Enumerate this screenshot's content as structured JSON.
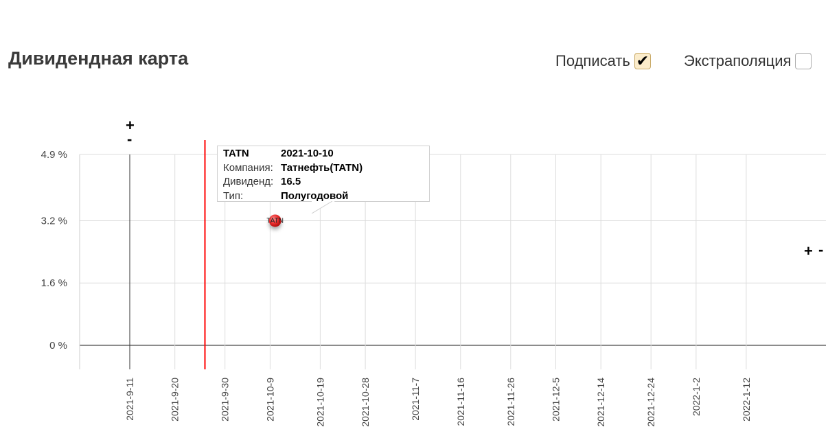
{
  "header": {
    "title": "Дивидендная карта",
    "label_option": "Подписать",
    "label_checked": true,
    "extrapolation_option": "Экстраполяция",
    "extrapolation_checked": false,
    "check_glyph": "✔"
  },
  "zoom": {
    "y_plus": "+",
    "y_minus": "-",
    "x_plus": "+",
    "x_minus": "-"
  },
  "chart_data": {
    "type": "scatter",
    "title": "",
    "xlabel": "",
    "ylabel": "",
    "y_unit": "%",
    "ylim": [
      -0.68,
      4.9
    ],
    "y_ticks": [
      0,
      1.6,
      3.2,
      4.9
    ],
    "y_tick_labels": [
      "0 %",
      "1.6 %",
      "3.2 %",
      "4.9 %"
    ],
    "xlim": [
      "2021-09-01",
      "2022-01-20"
    ],
    "x_tick_labels": [
      "2021-9-11",
      "2021-9-20",
      "2021-9-30",
      "2021-10-9",
      "2021-10-19",
      "2021-10-28",
      "2021-11-7",
      "2021-11-16",
      "2021-11-26",
      "2021-12-5",
      "2021-12-14",
      "2021-12-24",
      "2022-1-2",
      "2022-1-12"
    ],
    "today_line": "2021-09-26",
    "today_color": "#ff0000",
    "grid": true,
    "points": [
      {
        "ticker": "TATN",
        "date": "2021-10-10",
        "y": 3.2,
        "color": "#e82a2a"
      }
    ],
    "tooltip": {
      "ticker": "TATN",
      "date": "2021-10-10",
      "company_label": "Компания:",
      "company": "Татнефть(TATN)",
      "dividend_label": "Дивиденд:",
      "dividend": "16.5",
      "type_label": "Тип:",
      "type": "Полугодовой"
    }
  }
}
